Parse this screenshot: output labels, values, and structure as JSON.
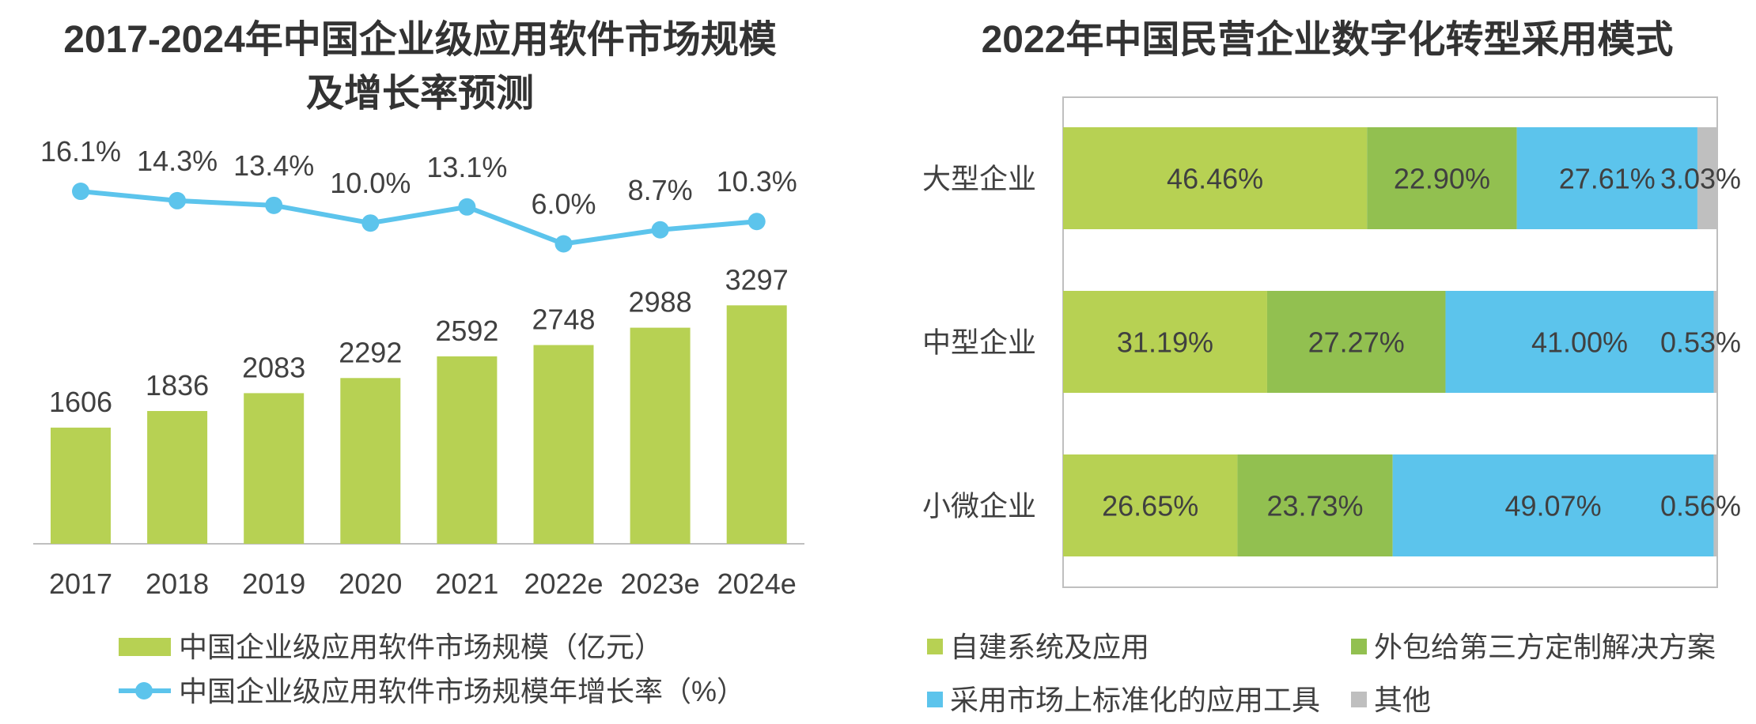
{
  "chart_data": [
    {
      "type": "bar",
      "title_lines": [
        "2017-2024年中国企业级应用软件市场规模",
        "及增长率预测"
      ],
      "categories": [
        "2017",
        "2018",
        "2019",
        "2020",
        "2021",
        "2022e",
        "2023e",
        "2024e"
      ],
      "series": [
        {
          "name": "中国企业级应用软件市场规模（亿元）",
          "type": "bar",
          "values": [
            1606,
            1836,
            2083,
            2292,
            2592,
            2748,
            2988,
            3297
          ],
          "color": "#B7D153"
        },
        {
          "name": "中国企业级应用软件市场规模年增长率（%）",
          "type": "line",
          "values": [
            16.1,
            14.3,
            13.4,
            10.0,
            13.1,
            6.0,
            8.7,
            10.3
          ],
          "unit": "%",
          "color": "#5CC4EC"
        }
      ],
      "grid": false,
      "legend_position": "bottom-left"
    },
    {
      "type": "bar",
      "orientation": "horizontal",
      "stacked": true,
      "title": "2022年中国民营企业数字化转型采用模式",
      "categories": [
        "大型企业",
        "中型企业",
        "小微企业"
      ],
      "series": [
        {
          "name": "自建系统及应用",
          "values": [
            46.46,
            31.19,
            26.65
          ],
          "color": "#B7D153"
        },
        {
          "name": "外包给第三方定制解决方案",
          "values": [
            22.9,
            27.27,
            23.73
          ],
          "color": "#92C050"
        },
        {
          "name": "采用市场上标准化的应用工具",
          "values": [
            27.61,
            41.0,
            49.07
          ],
          "color": "#5CC4EC"
        },
        {
          "name": "其他",
          "values": [
            3.03,
            0.53,
            0.56
          ],
          "color": "#BFBFBF"
        }
      ],
      "unit": "%",
      "xlim": [
        0,
        100
      ],
      "grid": false,
      "legend_position": "bottom"
    }
  ],
  "colors": {
    "title": "#333333",
    "text": "#404040",
    "axis": "#BFBFBF",
    "background": "#FFFFFF"
  }
}
